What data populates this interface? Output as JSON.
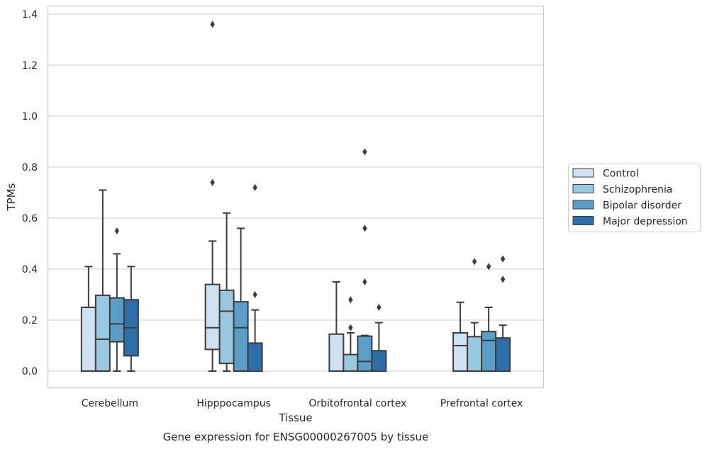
{
  "caption": "Gene expression for ENSG00000267005 by tissue",
  "chart_data": {
    "type": "box",
    "xlabel": "Tissue",
    "ylabel": "TPMs",
    "ylim": [
      -0.065,
      1.43
    ],
    "yticks": [
      0.0,
      0.2,
      0.4,
      0.6,
      0.8,
      1.0,
      1.2,
      1.4
    ],
    "ytick_labels": [
      "0.0",
      "0.2",
      "0.4",
      "0.6",
      "0.8",
      "1.0",
      "1.2",
      "1.4"
    ],
    "grid": "horizontal",
    "legend_position": "right",
    "categories": [
      "Cerebellum",
      "Hipppocampus",
      "Orbitofrontal cortex",
      "Prefrontal cortex"
    ],
    "series": [
      {
        "name": "Control",
        "color": "#d0e1f2",
        "boxes": [
          {
            "whislo": 0.0,
            "q1": 0.0,
            "med": 0.0,
            "q3": 0.25,
            "whishi": 0.41,
            "fliers": []
          },
          {
            "whislo": 0.0,
            "q1": 0.085,
            "med": 0.17,
            "q3": 0.34,
            "whishi": 0.51,
            "fliers": [
              0.74,
              1.36
            ]
          },
          {
            "whislo": 0.0,
            "q1": 0.0,
            "med": 0.0,
            "q3": 0.145,
            "whishi": 0.35,
            "fliers": []
          },
          {
            "whislo": 0.0,
            "q1": 0.0,
            "med": 0.1,
            "q3": 0.15,
            "whishi": 0.27,
            "fliers": []
          }
        ]
      },
      {
        "name": "Schizophrenia",
        "color": "#9ac8e0",
        "boxes": [
          {
            "whislo": 0.0,
            "q1": 0.0,
            "med": 0.125,
            "q3": 0.297,
            "whishi": 0.71,
            "fliers": []
          },
          {
            "whislo": 0.0,
            "q1": 0.03,
            "med": 0.235,
            "q3": 0.317,
            "whishi": 0.62,
            "fliers": []
          },
          {
            "whislo": 0.0,
            "q1": 0.0,
            "med": 0.0,
            "q3": 0.065,
            "whishi": 0.15,
            "fliers": [
              0.17,
              0.28
            ]
          },
          {
            "whislo": 0.0,
            "q1": 0.0,
            "med": 0.0,
            "q3": 0.135,
            "whishi": 0.19,
            "fliers": [
              0.43
            ]
          }
        ]
      },
      {
        "name": "Bipolar disorder",
        "color": "#5a9ec9",
        "boxes": [
          {
            "whislo": 0.0,
            "q1": 0.115,
            "med": 0.185,
            "q3": 0.287,
            "whishi": 0.46,
            "fliers": [
              0.55
            ]
          },
          {
            "whislo": 0.0,
            "q1": 0.0,
            "med": 0.17,
            "q3": 0.272,
            "whishi": 0.56,
            "fliers": []
          },
          {
            "whislo": 0.0,
            "q1": 0.0,
            "med": 0.038,
            "q3": 0.137,
            "whishi": 0.14,
            "fliers": [
              0.35,
              0.56,
              0.86
            ]
          },
          {
            "whislo": 0.0,
            "q1": 0.0,
            "med": 0.12,
            "q3": 0.155,
            "whishi": 0.25,
            "fliers": [
              0.41
            ]
          }
        ]
      },
      {
        "name": "Major depression",
        "color": "#2e6fa9",
        "boxes": [
          {
            "whislo": 0.0,
            "q1": 0.06,
            "med": 0.17,
            "q3": 0.28,
            "whishi": 0.41,
            "fliers": []
          },
          {
            "whislo": 0.0,
            "q1": 0.0,
            "med": 0.0,
            "q3": 0.11,
            "whishi": 0.24,
            "fliers": [
              0.3,
              0.72
            ]
          },
          {
            "whislo": 0.0,
            "q1": 0.0,
            "med": 0.0,
            "q3": 0.08,
            "whishi": 0.19,
            "fliers": [
              0.25
            ]
          },
          {
            "whislo": 0.0,
            "q1": 0.0,
            "med": 0.0,
            "q3": 0.13,
            "whishi": 0.18,
            "fliers": [
              0.36,
              0.44
            ]
          }
        ]
      }
    ]
  }
}
